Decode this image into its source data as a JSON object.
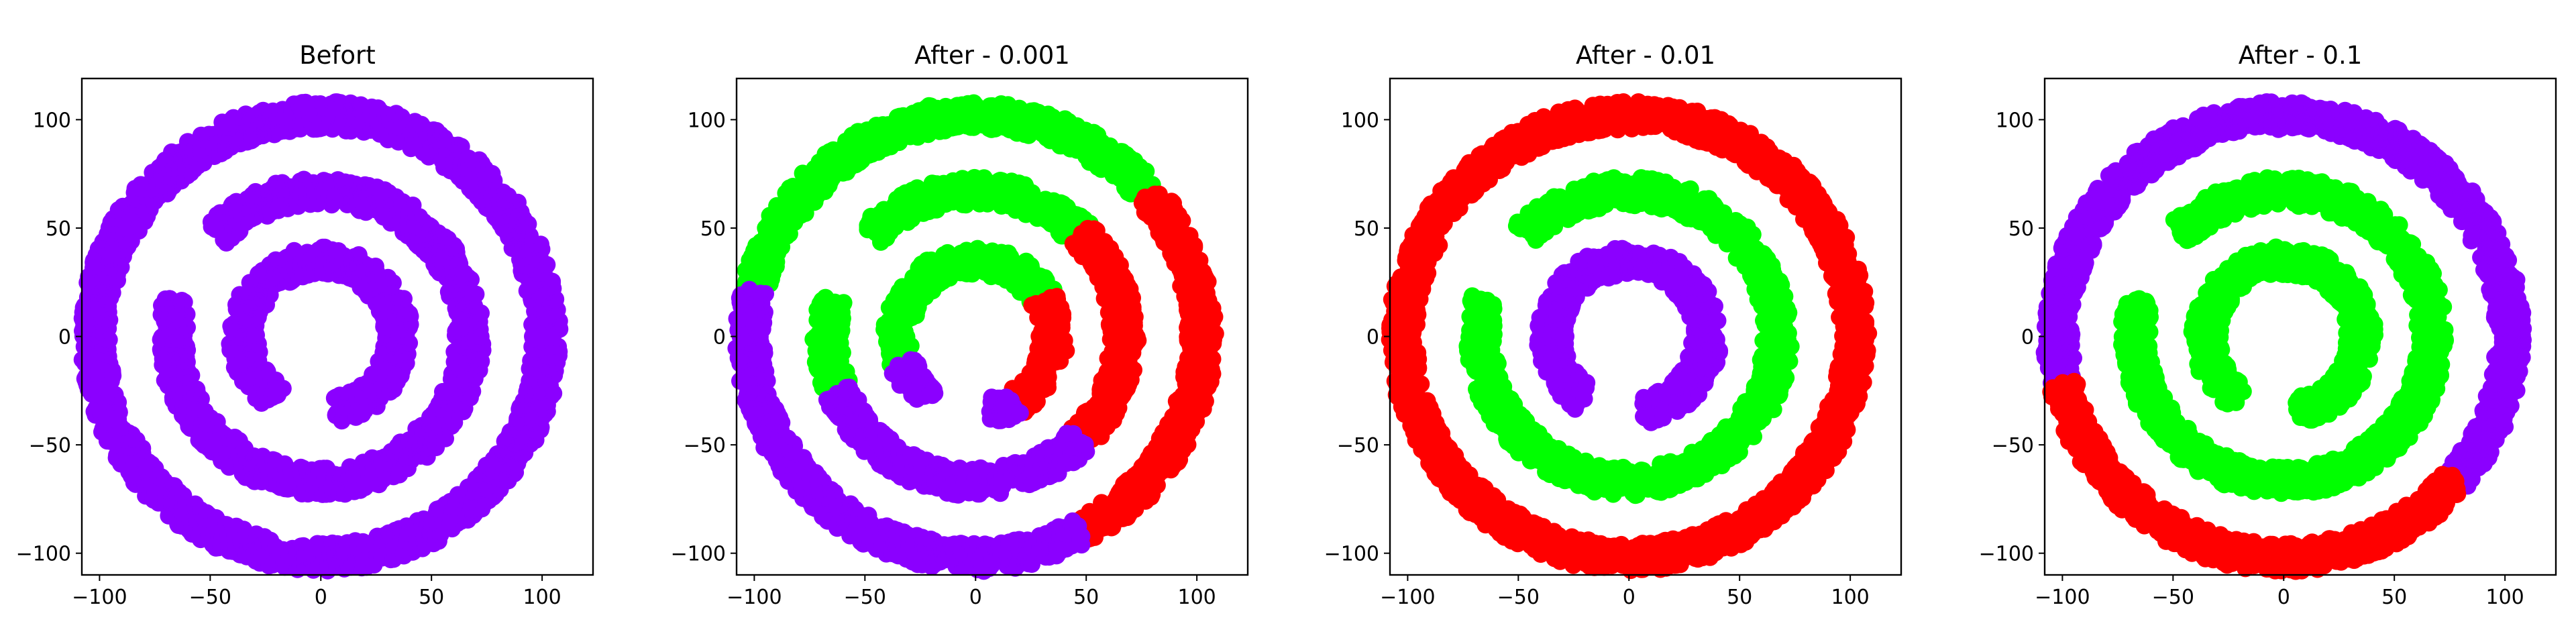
{
  "chart_data": [
    {
      "type": "scatter",
      "title": "Befort",
      "xlim": [
        -108,
        123
      ],
      "ylim": [
        -110,
        119
      ],
      "xticks": [
        -100,
        -50,
        0,
        50,
        100
      ],
      "yticks": [
        -100,
        -50,
        0,
        50,
        100
      ],
      "xtick_labels": [
        "−100",
        "−50",
        "0",
        "50",
        "100"
      ],
      "ytick_labels": [
        "−100",
        "−50",
        "0",
        "50",
        "100"
      ],
      "grid": false,
      "rings": [
        {
          "name": "inner",
          "radius": 35,
          "gap": [
            -125,
            -80
          ]
        },
        {
          "name": "middle",
          "radius": 67,
          "gap": [
            135,
            165
          ]
        },
        {
          "name": "outer",
          "radius": 102
        }
      ],
      "series": [
        {
          "color": "#8B00FF",
          "segments": [
            {
              "ring": "outer",
              "from": 0,
              "to": 360
            },
            {
              "ring": "middle",
              "from": 165,
              "to": 495
            },
            {
              "ring": "inner",
              "from": -80,
              "to": 235
            }
          ]
        }
      ]
    },
    {
      "type": "scatter",
      "title": "After - 0.001",
      "xlim": [
        -108,
        123
      ],
      "ylim": [
        -110,
        119
      ],
      "xticks": [
        -100,
        -50,
        0,
        50,
        100
      ],
      "yticks": [
        -100,
        -50,
        0,
        50,
        100
      ],
      "xtick_labels": [
        "−100",
        "−50",
        "0",
        "50",
        "100"
      ],
      "ytick_labels": [
        "−100",
        "−50",
        "0",
        "50",
        "100"
      ],
      "grid": false,
      "rings": [
        {
          "name": "inner",
          "radius": 35,
          "gap": [
            -125,
            -80
          ]
        },
        {
          "name": "middle",
          "radius": 67,
          "gap": [
            135,
            165
          ]
        },
        {
          "name": "outer",
          "radius": 102
        }
      ],
      "series": [
        {
          "color": "#00FF00",
          "segments": [
            {
              "ring": "outer",
              "from": 40,
              "to": 168
            },
            {
              "ring": "middle",
              "from": 45,
              "to": 135
            },
            {
              "ring": "middle",
              "from": 165,
              "to": 202
            },
            {
              "ring": "inner",
              "from": 30,
              "to": 200
            }
          ]
        },
        {
          "color": "#FF0000",
          "segments": [
            {
              "ring": "outer",
              "from": -62,
              "to": 40
            },
            {
              "ring": "middle",
              "from": -45,
              "to": 45
            },
            {
              "ring": "inner",
              "from": -60,
              "to": 30
            }
          ]
        },
        {
          "color": "#8B00FF",
          "segments": [
            {
              "ring": "outer",
              "from": 168,
              "to": 298
            },
            {
              "ring": "middle",
              "from": 202,
              "to": 315
            },
            {
              "ring": "inner",
              "from": 200,
              "to": 235
            },
            {
              "ring": "inner",
              "from": -80,
              "to": -60
            }
          ]
        }
      ]
    },
    {
      "type": "scatter",
      "title": "After - 0.01",
      "xlim": [
        -108,
        123
      ],
      "ylim": [
        -110,
        119
      ],
      "xticks": [
        -100,
        -50,
        0,
        50,
        100
      ],
      "yticks": [
        -100,
        -50,
        0,
        50,
        100
      ],
      "xtick_labels": [
        "−100",
        "−50",
        "0",
        "50",
        "100"
      ],
      "ytick_labels": [
        "−100",
        "−50",
        "0",
        "50",
        "100"
      ],
      "grid": false,
      "rings": [
        {
          "name": "inner",
          "radius": 35,
          "gap": [
            -125,
            -80
          ]
        },
        {
          "name": "middle",
          "radius": 67,
          "gap": [
            135,
            165
          ]
        },
        {
          "name": "outer",
          "radius": 102
        }
      ],
      "series": [
        {
          "color": "#FF0000",
          "segments": [
            {
              "ring": "outer",
              "from": 0,
              "to": 360
            }
          ]
        },
        {
          "color": "#00FF00",
          "segments": [
            {
              "ring": "middle",
              "from": 165,
              "to": 495
            }
          ]
        },
        {
          "color": "#8B00FF",
          "segments": [
            {
              "ring": "inner",
              "from": -80,
              "to": 235
            }
          ]
        }
      ]
    },
    {
      "type": "scatter",
      "title": "After - 0.1",
      "xlim": [
        -108,
        123
      ],
      "ylim": [
        -110,
        119
      ],
      "xticks": [
        -100,
        -50,
        0,
        50,
        100
      ],
      "yticks": [
        -100,
        -50,
        0,
        50,
        100
      ],
      "xtick_labels": [
        "−100",
        "−50",
        "0",
        "50",
        "100"
      ],
      "ytick_labels": [
        "−100",
        "−50",
        "0",
        "50",
        "100"
      ],
      "grid": false,
      "rings": [
        {
          "name": "inner",
          "radius": 35,
          "gap": [
            -125,
            -80
          ]
        },
        {
          "name": "middle",
          "radius": 67,
          "gap": [
            135,
            165
          ]
        },
        {
          "name": "outer",
          "radius": 102
        }
      ],
      "series": [
        {
          "color": "#8B00FF",
          "segments": [
            {
              "ring": "outer",
              "from": -40,
              "to": 192
            }
          ]
        },
        {
          "color": "#FF0000",
          "segments": [
            {
              "ring": "outer",
              "from": 192,
              "to": 320
            }
          ]
        },
        {
          "color": "#00FF00",
          "segments": [
            {
              "ring": "middle",
              "from": 165,
              "to": 495
            },
            {
              "ring": "inner",
              "from": -80,
              "to": 235
            }
          ]
        }
      ]
    }
  ]
}
